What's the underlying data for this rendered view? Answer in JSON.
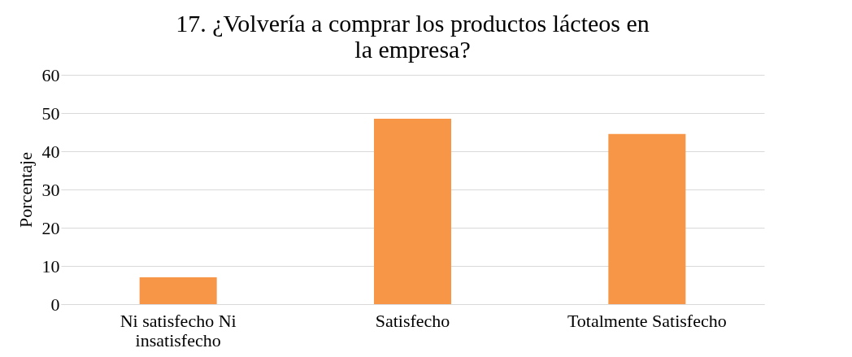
{
  "chart_data": {
    "type": "bar",
    "title": "17. ¿Volvería a comprar los productos lácteos en la empresa?",
    "ylabel": "Porcentaje",
    "categories": [
      "Ni satisfecho Ni insatisfecho",
      "Satisfecho",
      "Totalmente Satisfecho"
    ],
    "values": [
      7,
      48.5,
      44.5
    ],
    "color": "#f79646",
    "ylim": [
      0,
      60
    ],
    "yticks": [
      0,
      10,
      20,
      30,
      40,
      50,
      60
    ],
    "grid": "y"
  }
}
